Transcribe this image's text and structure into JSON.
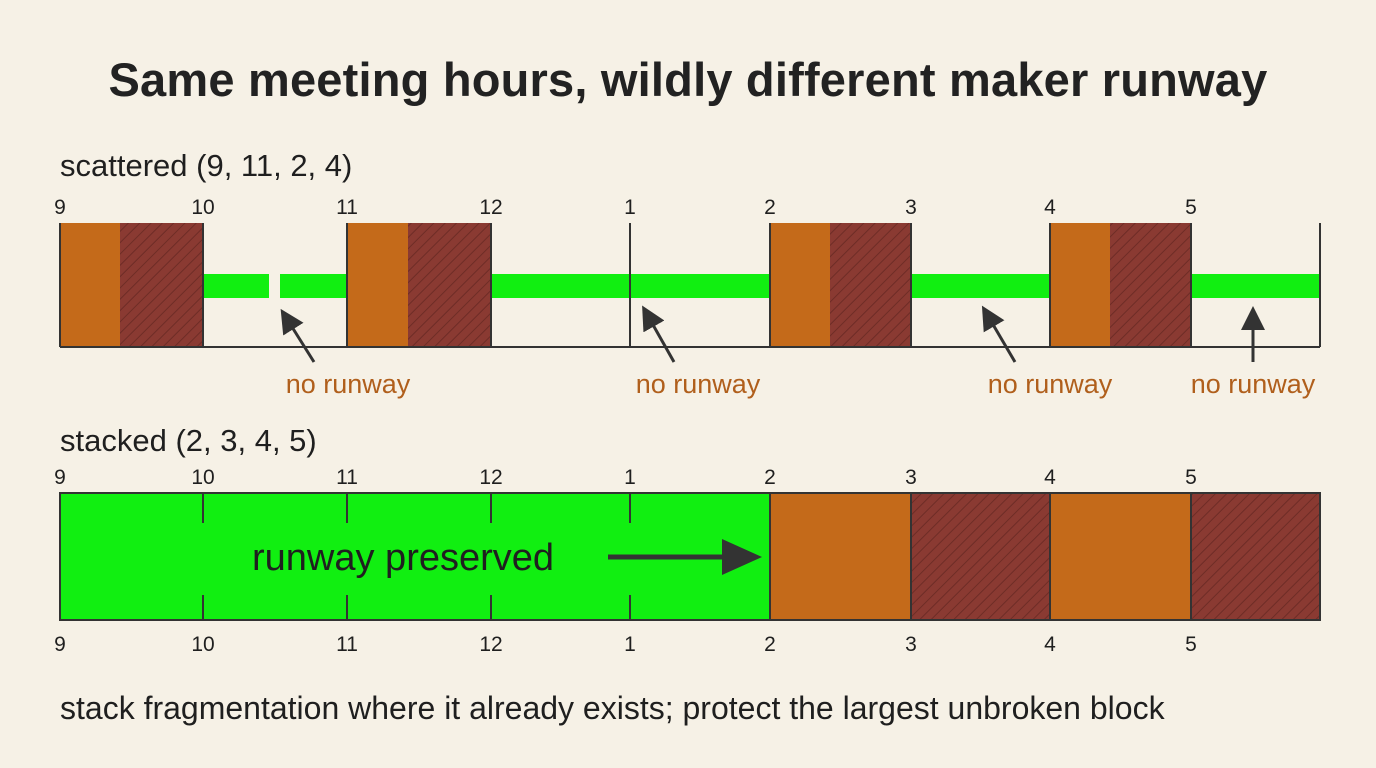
{
  "title": "Same meeting hours, wildly different maker runway",
  "colors": {
    "background": "#f6f1e6",
    "meeting_orange": "#c46a1a",
    "meeting_hatched": "#8a3a32",
    "runway_green": "#11ef11",
    "note_text": "#b05f1c",
    "ink": "#1f1f1f"
  },
  "hour_labels": [
    "9",
    "10",
    "11",
    "12",
    "1",
    "2",
    "3",
    "4",
    "5"
  ],
  "scattered": {
    "label": "scattered (9, 11, 2, 4)",
    "meetings": [
      "9",
      "11",
      "2",
      "4"
    ],
    "notes": [
      "no runway",
      "no runway",
      "no runway",
      "no runway"
    ]
  },
  "stacked": {
    "label": "stacked (2, 3, 4, 5)",
    "meetings": [
      "2",
      "3",
      "4",
      "5"
    ],
    "runway_label": "runway preserved"
  },
  "caption": "stack fragmentation where it already exists; protect the largest unbroken block"
}
